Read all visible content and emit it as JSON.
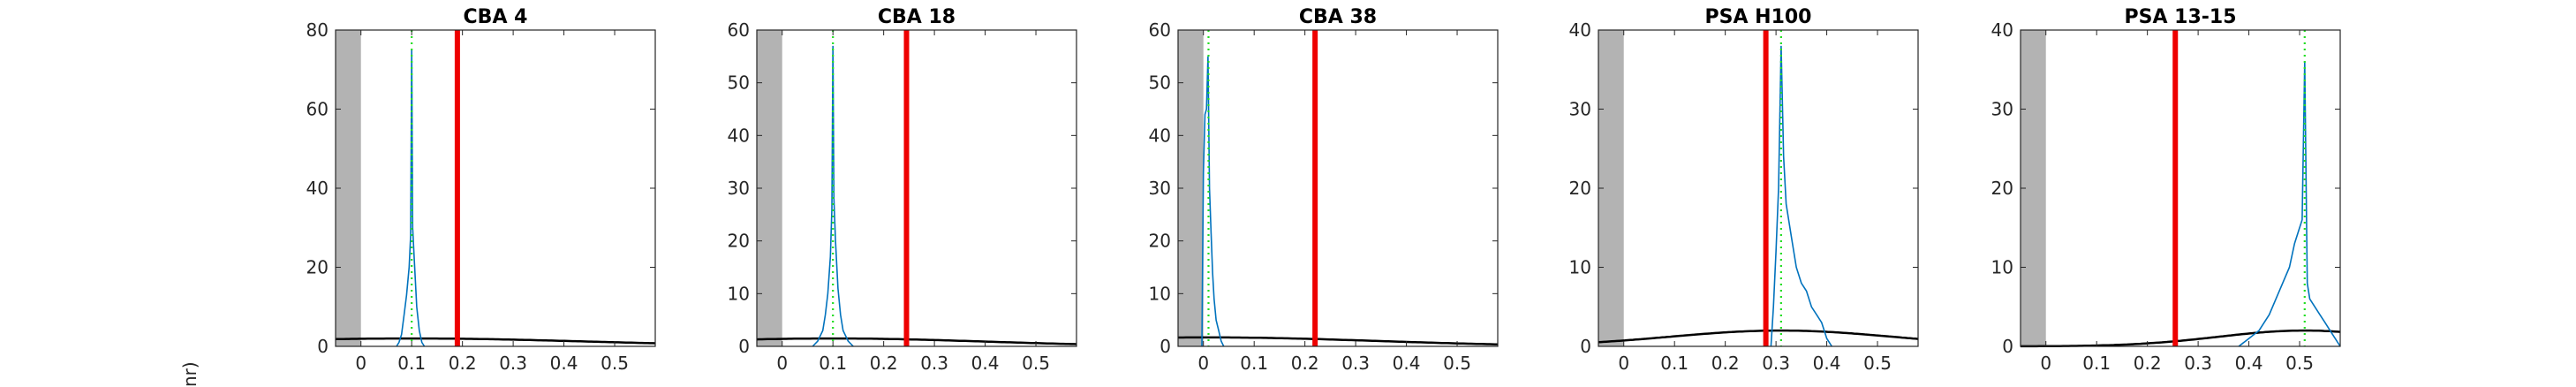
{
  "figure": {
    "ylabel_fragment": "nr)"
  },
  "chart_data": [
    {
      "type": "area",
      "title": "CBA 4",
      "xlim": [
        -0.05,
        0.58
      ],
      "ylim": [
        0,
        80
      ],
      "xticks": [
        0,
        0.1,
        0.2,
        0.3,
        0.4,
        0.5
      ],
      "xtick_labels": [
        "0",
        "0.1",
        "0.2",
        "0.3",
        "0.4",
        "0.5"
      ],
      "yticks": [
        0,
        20,
        40,
        60,
        80
      ],
      "ytick_labels": [
        "0",
        "20",
        "40",
        "60",
        "80"
      ],
      "shaded_region": [
        -0.05,
        0.0
      ],
      "threshold_line": 0.19,
      "mode_line": 0.1,
      "histogram": {
        "x": [
          0.07,
          0.075,
          0.08,
          0.085,
          0.09,
          0.095,
          0.098,
          0.1,
          0.102,
          0.105,
          0.11,
          0.115,
          0.12,
          0.125
        ],
        "y": [
          0,
          1,
          3,
          8,
          13,
          20,
          28,
          75,
          30,
          22,
          10,
          4,
          1,
          0
        ]
      },
      "gaussian": {
        "peak_x": 0.1,
        "peak_y": 2.0,
        "sigma": 0.35
      }
    },
    {
      "type": "area",
      "title": "CBA 18",
      "xlim": [
        -0.05,
        0.58
      ],
      "ylim": [
        0,
        60
      ],
      "xticks": [
        0,
        0.1,
        0.2,
        0.3,
        0.4,
        0.5
      ],
      "xtick_labels": [
        "0",
        "0.1",
        "0.2",
        "0.3",
        "0.4",
        "0.5"
      ],
      "yticks": [
        0,
        10,
        20,
        30,
        40,
        50,
        60
      ],
      "ytick_labels": [
        "0",
        "10",
        "20",
        "30",
        "40",
        "50",
        "60"
      ],
      "shaded_region": [
        -0.05,
        0.0
      ],
      "threshold_line": 0.245,
      "mode_line": 0.1,
      "histogram": {
        "x": [
          0.06,
          0.07,
          0.08,
          0.085,
          0.09,
          0.095,
          0.098,
          0.1,
          0.102,
          0.105,
          0.11,
          0.115,
          0.12,
          0.13,
          0.14
        ],
        "y": [
          0,
          1,
          3,
          6,
          10,
          17,
          26,
          57,
          28,
          20,
          11,
          6,
          3,
          1,
          0
        ]
      },
      "gaussian": {
        "peak_x": 0.1,
        "peak_y": 1.5,
        "sigma": 0.3
      }
    },
    {
      "type": "area",
      "title": "CBA 38",
      "xlim": [
        -0.05,
        0.58
      ],
      "ylim": [
        0,
        60
      ],
      "xticks": [
        0,
        0.1,
        0.2,
        0.3,
        0.4,
        0.5
      ],
      "xtick_labels": [
        "0",
        "0.1",
        "0.2",
        "0.3",
        "0.4",
        "0.5"
      ],
      "yticks": [
        0,
        10,
        20,
        30,
        40,
        50,
        60
      ],
      "ytick_labels": [
        "0",
        "10",
        "20",
        "30",
        "40",
        "50",
        "60"
      ],
      "shaded_region": [
        -0.05,
        0.0
      ],
      "threshold_line": 0.22,
      "mode_line": 0.01,
      "histogram": {
        "x": [
          -0.003,
          0.0,
          0.003,
          0.006,
          0.009,
          0.012,
          0.015,
          0.018,
          0.021,
          0.025,
          0.03,
          0.035,
          0.04
        ],
        "y": [
          0,
          33,
          44,
          45,
          55,
          30,
          22,
          14,
          9,
          5,
          3,
          1,
          0
        ]
      },
      "gaussian": {
        "peak_x": 0.01,
        "peak_y": 1.7,
        "sigma": 0.33
      }
    },
    {
      "type": "area",
      "title": "PSA H100",
      "xlim": [
        -0.05,
        0.58
      ],
      "ylim": [
        0,
        40
      ],
      "xticks": [
        0,
        0.1,
        0.2,
        0.3,
        0.4,
        0.5
      ],
      "xtick_labels": [
        "0",
        "0.1",
        "0.2",
        "0.3",
        "0.4",
        "0.5"
      ],
      "yticks": [
        0,
        10,
        20,
        30,
        40
      ],
      "ytick_labels": [
        "0",
        "10",
        "20",
        "30",
        "40"
      ],
      "shaded_region": [
        -0.05,
        0.0
      ],
      "threshold_line": 0.28,
      "mode_line": 0.31,
      "histogram": {
        "x": [
          0.29,
          0.295,
          0.3,
          0.305,
          0.31,
          0.315,
          0.32,
          0.33,
          0.34,
          0.35,
          0.36,
          0.37,
          0.38,
          0.39,
          0.4,
          0.41
        ],
        "y": [
          0,
          5,
          12,
          20,
          38,
          24,
          18,
          14,
          10,
          8,
          7,
          5,
          4,
          3,
          1,
          0
        ]
      },
      "gaussian": {
        "peak_x": 0.31,
        "peak_y": 2.0,
        "sigma": 0.22
      }
    },
    {
      "type": "area",
      "title": "PSA 13-15",
      "xlim": [
        -0.05,
        0.58
      ],
      "ylim": [
        0,
        40
      ],
      "xticks": [
        0,
        0.1,
        0.2,
        0.3,
        0.4,
        0.5
      ],
      "xtick_labels": [
        "0",
        "0.1",
        "0.2",
        "0.3",
        "0.4",
        "0.5"
      ],
      "yticks": [
        0,
        10,
        20,
        30,
        40
      ],
      "ytick_labels": [
        "0",
        "10",
        "20",
        "30",
        "40"
      ],
      "shaded_region": [
        -0.05,
        0.0
      ],
      "threshold_line": 0.255,
      "mode_line": 0.51,
      "histogram": {
        "x": [
          0.38,
          0.4,
          0.42,
          0.44,
          0.46,
          0.48,
          0.49,
          0.5,
          0.505,
          0.51,
          0.515,
          0.52,
          0.53,
          0.54,
          0.55,
          0.56,
          0.57,
          0.58
        ],
        "y": [
          0,
          1,
          2,
          4,
          7,
          10,
          13,
          15,
          16,
          36,
          8,
          6,
          5,
          4,
          3,
          2,
          1,
          0
        ]
      },
      "gaussian": {
        "peak_x": 0.51,
        "peak_y": 2.0,
        "sigma": 0.17
      }
    }
  ]
}
